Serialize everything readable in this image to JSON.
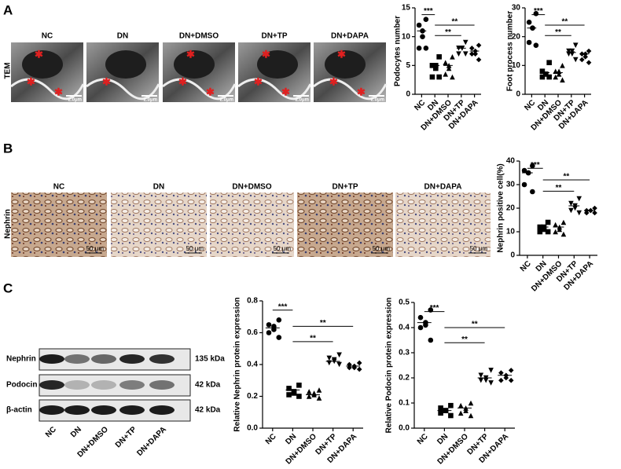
{
  "figure": {
    "panels": [
      "A",
      "B",
      "C"
    ],
    "tem": {
      "row_label": "TEM",
      "titles": [
        "NC",
        "DN",
        "DN+DMSO",
        "DN+TP",
        "DN+DAPA"
      ],
      "scale_bars": [
        "2.0μm",
        "2.0μm",
        "2.0μm",
        "2.0μm",
        "2.0μm"
      ]
    },
    "ihc": {
      "row_label": "Nephrin",
      "titles": [
        "NC",
        "DN",
        "DN+DMSO",
        "DN+TP",
        "DN+DAPA"
      ],
      "scale_bars": [
        "50 μm",
        "50 μm",
        "50 μm",
        "50 μm",
        "50 μm"
      ]
    },
    "blot": {
      "rows": [
        "Nephrin",
        "Podocin",
        "β-actin"
      ],
      "sizes": [
        "135 kDa",
        "42 kDa",
        "42 kDa"
      ],
      "lanes": [
        "NC",
        "DN",
        "DN+DMSO",
        "DN+TP",
        "DN+DAPA"
      ]
    }
  },
  "chart_data": [
    {
      "type": "dot",
      "ylabel": "Podocytes number",
      "color": "#000000",
      "categories": [
        "NC",
        "DN",
        "DN+DMSO",
        "DN+TP",
        "DN+DAPA"
      ],
      "markers": [
        "circle",
        "square",
        "triangle",
        "triangle-down",
        "diamond"
      ],
      "values": [
        [
          13,
          12,
          11,
          10,
          8,
          8
        ],
        [
          6.5,
          5,
          5,
          4.5,
          3,
          3
        ],
        [
          6.5,
          5.5,
          5,
          4.5,
          3.5,
          3
        ],
        [
          9,
          8,
          8,
          8,
          7,
          7
        ],
        [
          8.5,
          8,
          7.5,
          7,
          7,
          6
        ]
      ],
      "means": [
        11,
        5,
        5,
        8,
        7.5
      ],
      "ylim": [
        0,
        15
      ],
      "yticks": [
        0,
        5,
        10,
        15
      ],
      "annotations": [
        "***",
        "**",
        "**"
      ]
    },
    {
      "type": "dot",
      "ylabel": "Foot process number",
      "color": "#000000",
      "categories": [
        "NC",
        "DN",
        "DN+DMSO",
        "DN+TP",
        "DN+DAPA"
      ],
      "markers": [
        "circle",
        "square",
        "triangle",
        "triangle-down",
        "diamond"
      ],
      "values": [
        [
          28,
          25,
          23,
          23,
          18,
          17
        ],
        [
          11,
          8,
          7,
          7,
          6,
          6
        ],
        [
          10,
          8,
          8,
          7,
          6,
          5
        ],
        [
          17,
          15,
          15,
          14,
          14,
          12
        ],
        [
          15,
          14,
          14,
          13,
          12,
          11
        ]
      ],
      "means": [
        23,
        7.5,
        7.5,
        14.5,
        14
      ],
      "ylim": [
        0,
        30
      ],
      "yticks": [
        0,
        10,
        20,
        30
      ],
      "annotations": [
        "***",
        "**",
        "**"
      ]
    },
    {
      "type": "dot",
      "ylabel": "Nephrin positive cell(%)",
      "color": "#000000",
      "categories": [
        "NC",
        "DN",
        "DN+DMSO",
        "DN+TP",
        "DN+DAPA"
      ],
      "markers": [
        "circle",
        "square",
        "triangle",
        "triangle-down",
        "diamond"
      ],
      "values": [
        [
          38,
          36,
          35,
          35,
          30,
          27
        ],
        [
          14,
          12,
          12,
          11,
          10,
          10
        ],
        [
          14,
          13,
          12,
          11,
          10,
          9
        ],
        [
          24,
          22,
          21,
          20,
          19,
          18
        ],
        [
          20,
          19,
          19,
          19,
          18,
          18
        ]
      ],
      "means": [
        35,
        12,
        12,
        21,
        19
      ],
      "ylim": [
        0,
        40
      ],
      "yticks": [
        0,
        10,
        20,
        30,
        40
      ],
      "annotations": [
        "***",
        "**",
        "**"
      ]
    },
    {
      "type": "dot",
      "ylabel": "Relative Nephrin protein expression",
      "color": "#000000",
      "categories": [
        "NC",
        "DN",
        "DN+DMSO",
        "DN+TP",
        "DN+DAPA"
      ],
      "markers": [
        "circle",
        "square",
        "triangle",
        "triangle-down",
        "diamond"
      ],
      "values": [
        [
          0.68,
          0.65,
          0.64,
          0.62,
          0.6,
          0.57
        ],
        [
          0.27,
          0.25,
          0.23,
          0.22,
          0.21,
          0.2
        ],
        [
          0.24,
          0.23,
          0.22,
          0.21,
          0.2,
          0.19
        ],
        [
          0.46,
          0.44,
          0.43,
          0.42,
          0.41,
          0.4
        ],
        [
          0.41,
          0.4,
          0.39,
          0.38,
          0.38,
          0.37
        ]
      ],
      "means": [
        0.63,
        0.24,
        0.21,
        0.42,
        0.39
      ],
      "ylim": [
        0,
        0.8
      ],
      "yticks": [
        {
          "value": 0,
          "label": "0.0"
        },
        0.2,
        0.4,
        0.6,
        0.8
      ],
      "annotations": [
        "***",
        "**",
        "**"
      ]
    },
    {
      "type": "dot",
      "ylabel": "Relative Podocin protein expression",
      "color": "#000000",
      "categories": [
        "NC",
        "DN",
        "DN+DMSO",
        "DN+TP",
        "DN+DAPA"
      ],
      "markers": [
        "circle",
        "square",
        "triangle",
        "triangle-down",
        "diamond"
      ],
      "values": [
        [
          0.47,
          0.44,
          0.42,
          0.41,
          0.4,
          0.35
        ],
        [
          0.09,
          0.08,
          0.07,
          0.07,
          0.06,
          0.05
        ],
        [
          0.1,
          0.09,
          0.08,
          0.07,
          0.06,
          0.05
        ],
        [
          0.23,
          0.21,
          0.2,
          0.19,
          0.19,
          0.18
        ],
        [
          0.23,
          0.22,
          0.21,
          0.2,
          0.19,
          0.19
        ]
      ],
      "means": [
        0.42,
        0.07,
        0.08,
        0.2,
        0.21
      ],
      "ylim": [
        0,
        0.5
      ],
      "yticks": [
        {
          "value": 0,
          "label": "0.0"
        },
        0.1,
        0.2,
        0.3,
        0.4,
        0.5
      ],
      "annotations": [
        "***",
        "**",
        "**"
      ]
    }
  ]
}
